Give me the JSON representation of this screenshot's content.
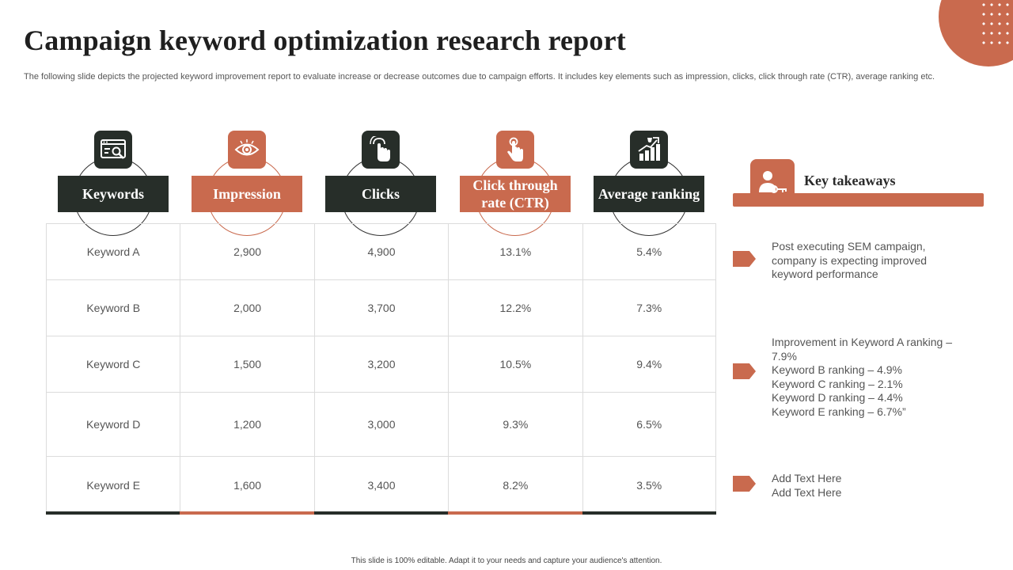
{
  "slide": {
    "title": "Campaign keyword optimization research report",
    "subtitle": "The following slide depicts the projected keyword improvement report to evaluate increase or decrease outcomes due to campaign efforts. It includes key elements such as impression, clicks, click through rate (CTR), average ranking etc.",
    "footer": "This slide is 100% editable. Adapt it to your needs and capture your audience's attention."
  },
  "colors": {
    "accent": "#c96a4e",
    "dark": "#272e29",
    "grid": "#dcdcdc",
    "text": "#555555"
  },
  "table": {
    "headers": [
      {
        "label": "Keywords",
        "icon": "keyword-search-icon",
        "style": "dark"
      },
      {
        "label": "Impression",
        "icon": "eye-icon",
        "style": "accent"
      },
      {
        "label": "Clicks",
        "icon": "hand-tap-icon",
        "style": "dark"
      },
      {
        "label": "Click through rate (CTR)",
        "icon": "finger-click-icon",
        "style": "accent"
      },
      {
        "label": "Average ranking",
        "icon": "trophy-chart-icon",
        "style": "dark"
      }
    ],
    "rows": [
      [
        "Keyword A",
        "2,900",
        "4,900",
        "13.1%",
        "5.4%"
      ],
      [
        "Keyword B",
        "2,000",
        "3,700",
        "12.2%",
        "7.3%"
      ],
      [
        "Keyword C",
        "1,500",
        "3,200",
        "10.5%",
        "9.4%"
      ],
      [
        "Keyword D",
        "1,200",
        "3,000",
        "9.3%",
        "6.5%"
      ],
      [
        "Keyword E",
        "1,600",
        "3,400",
        "8.2%",
        "3.5%"
      ]
    ]
  },
  "takeaways": {
    "title": "Key takeaways",
    "icon": "person-key-icon",
    "items": [
      "Post executing SEM campaign, company is expecting improved keyword performance",
      "Improvement in Keyword A ranking – 7.9%\nKeyword B ranking – 4.9%\nKeyword C ranking – 2.1%\nKeyword D ranking – 4.4%\nKeyword E ranking – 6.7%”",
      "Add Text Here\nAdd Text Here"
    ]
  }
}
